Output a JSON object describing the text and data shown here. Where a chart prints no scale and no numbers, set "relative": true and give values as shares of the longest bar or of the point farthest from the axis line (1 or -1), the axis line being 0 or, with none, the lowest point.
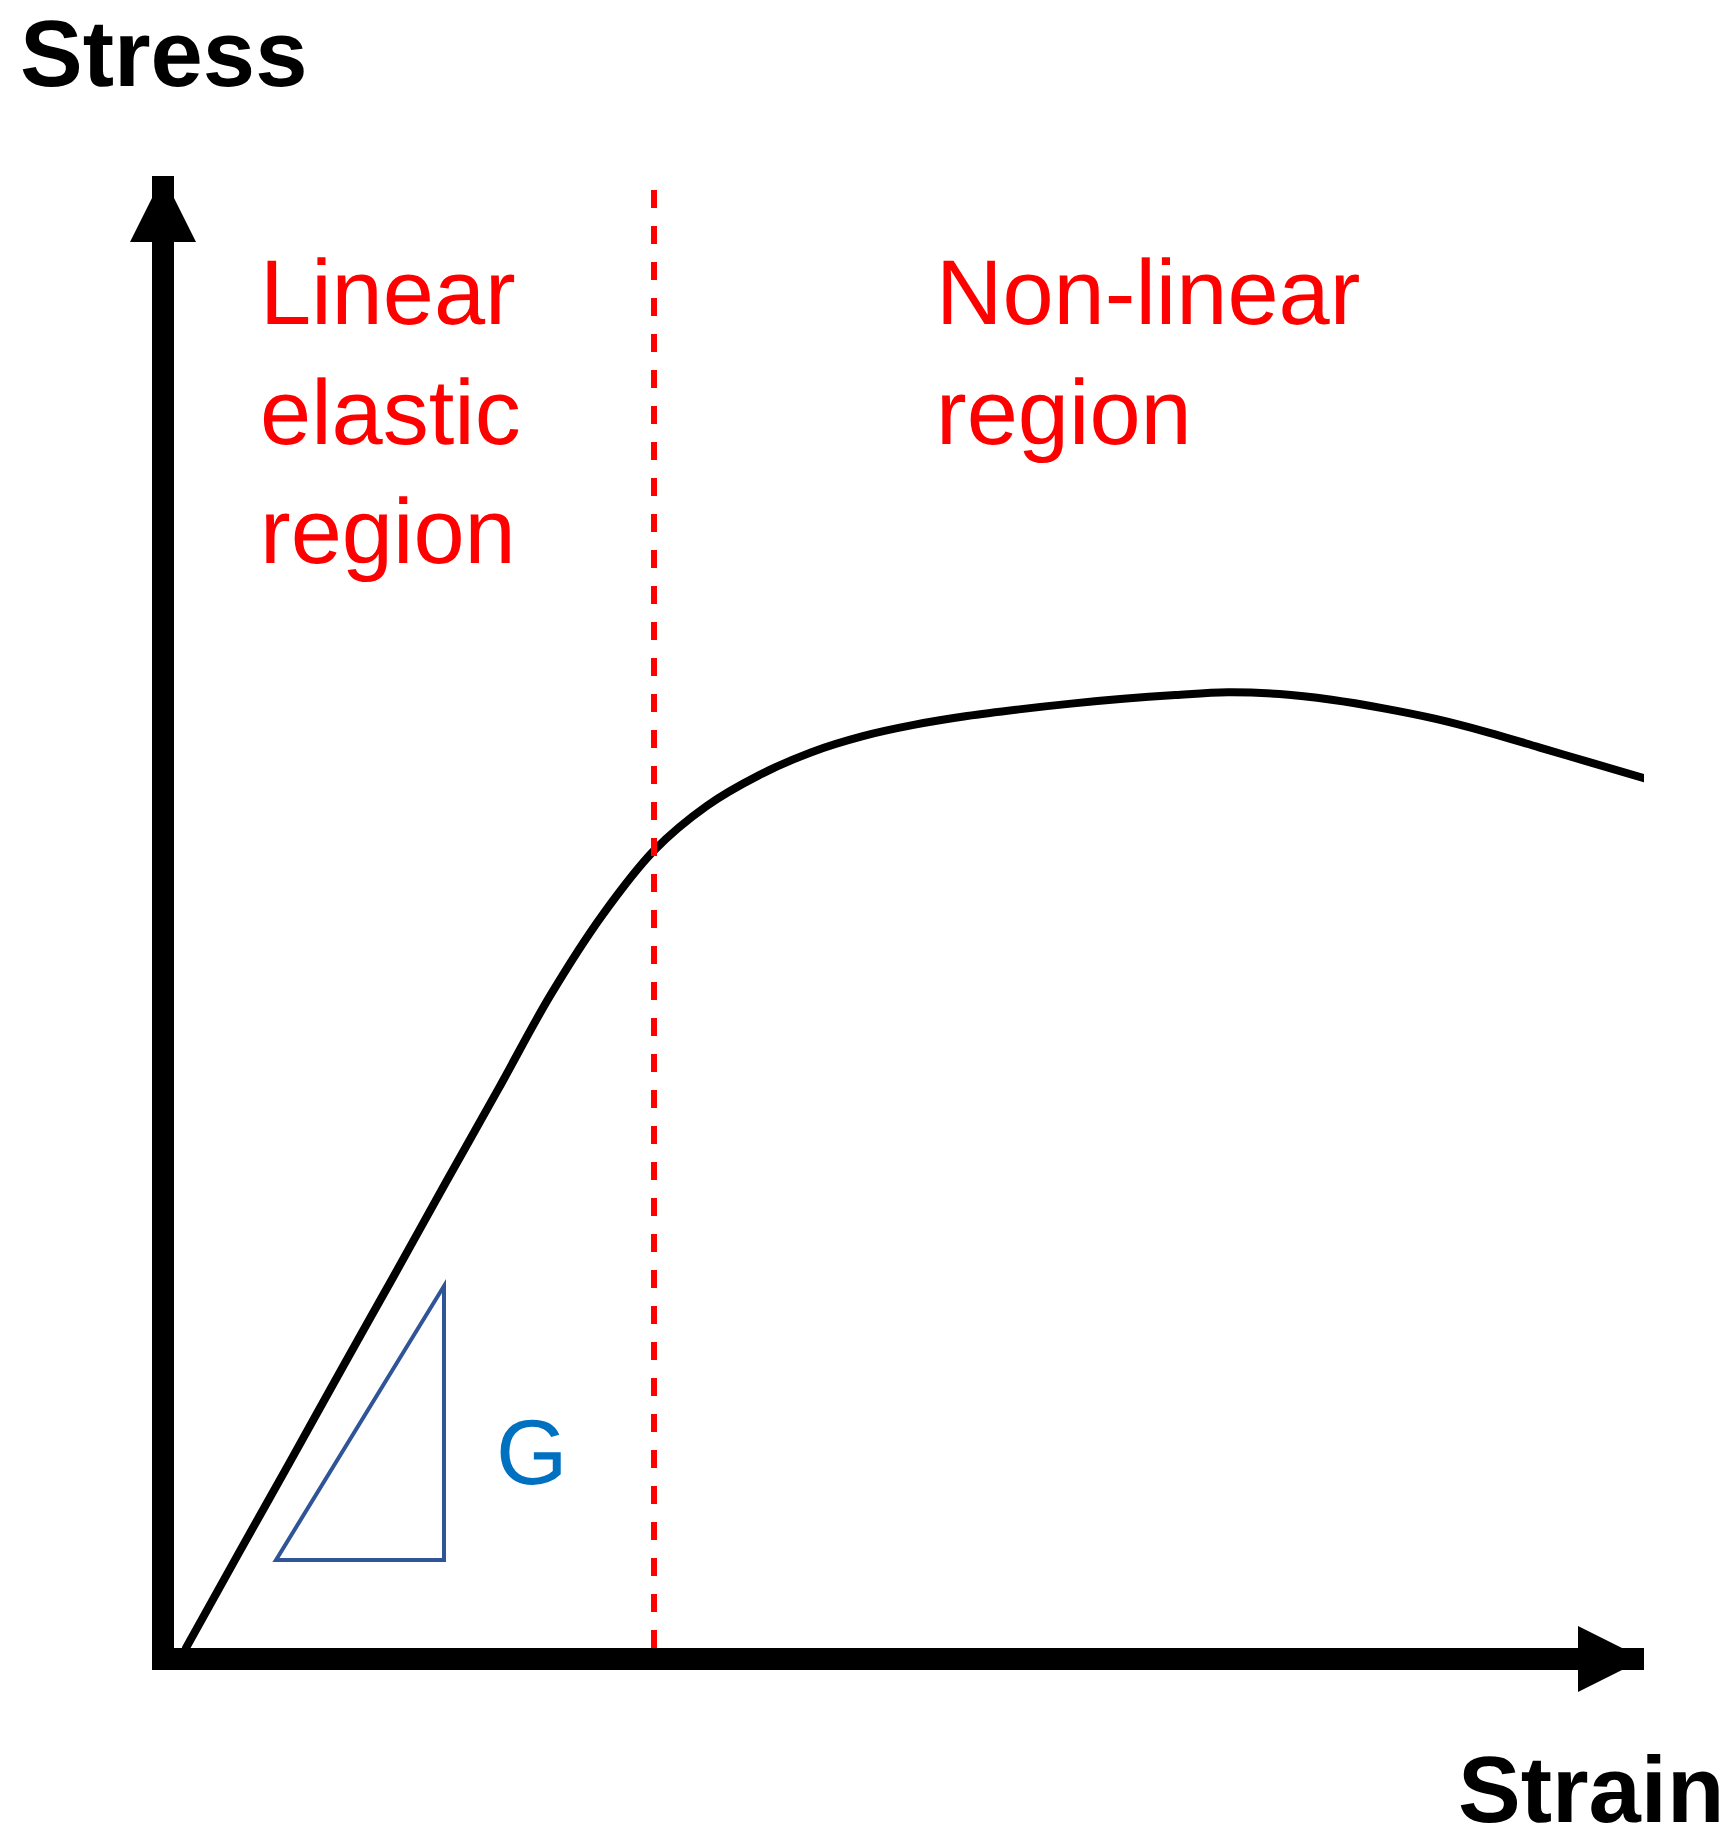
{
  "chart_data": {
    "type": "line",
    "xlabel": "Strain",
    "relative": true,
    "categories": [
      null,
      null,
      null,
      null,
      null,
      null,
      null,
      null,
      null,
      null,
      null,
      null,
      null,
      null,
      null,
      null,
      null,
      null,
      null,
      null,
      null,
      null,
      null,
      null,
      null,
      null,
      null,
      null,
      null
    ],
    "series": [
      {
        "color": "#000000",
        "values": [
          0,
          0.098,
          0.195,
          0.293,
          0.39,
          0.488,
          0.585,
          0.683,
          0.767,
          0.835,
          0.881,
          0.913,
          0.937,
          0.954,
          0.966,
          0.975,
          0.982,
          0.988,
          0.993,
          0.997,
          1.0,
          0.998,
          0.992,
          0.983,
          0.972,
          0.958,
          0.942,
          0.926,
          0.91
        ]
      }
    ],
    "annotations": [
      "Stress",
      "Linear\nelastic\nregion",
      "Non-linear\nregion",
      "G"
    ]
  }
}
